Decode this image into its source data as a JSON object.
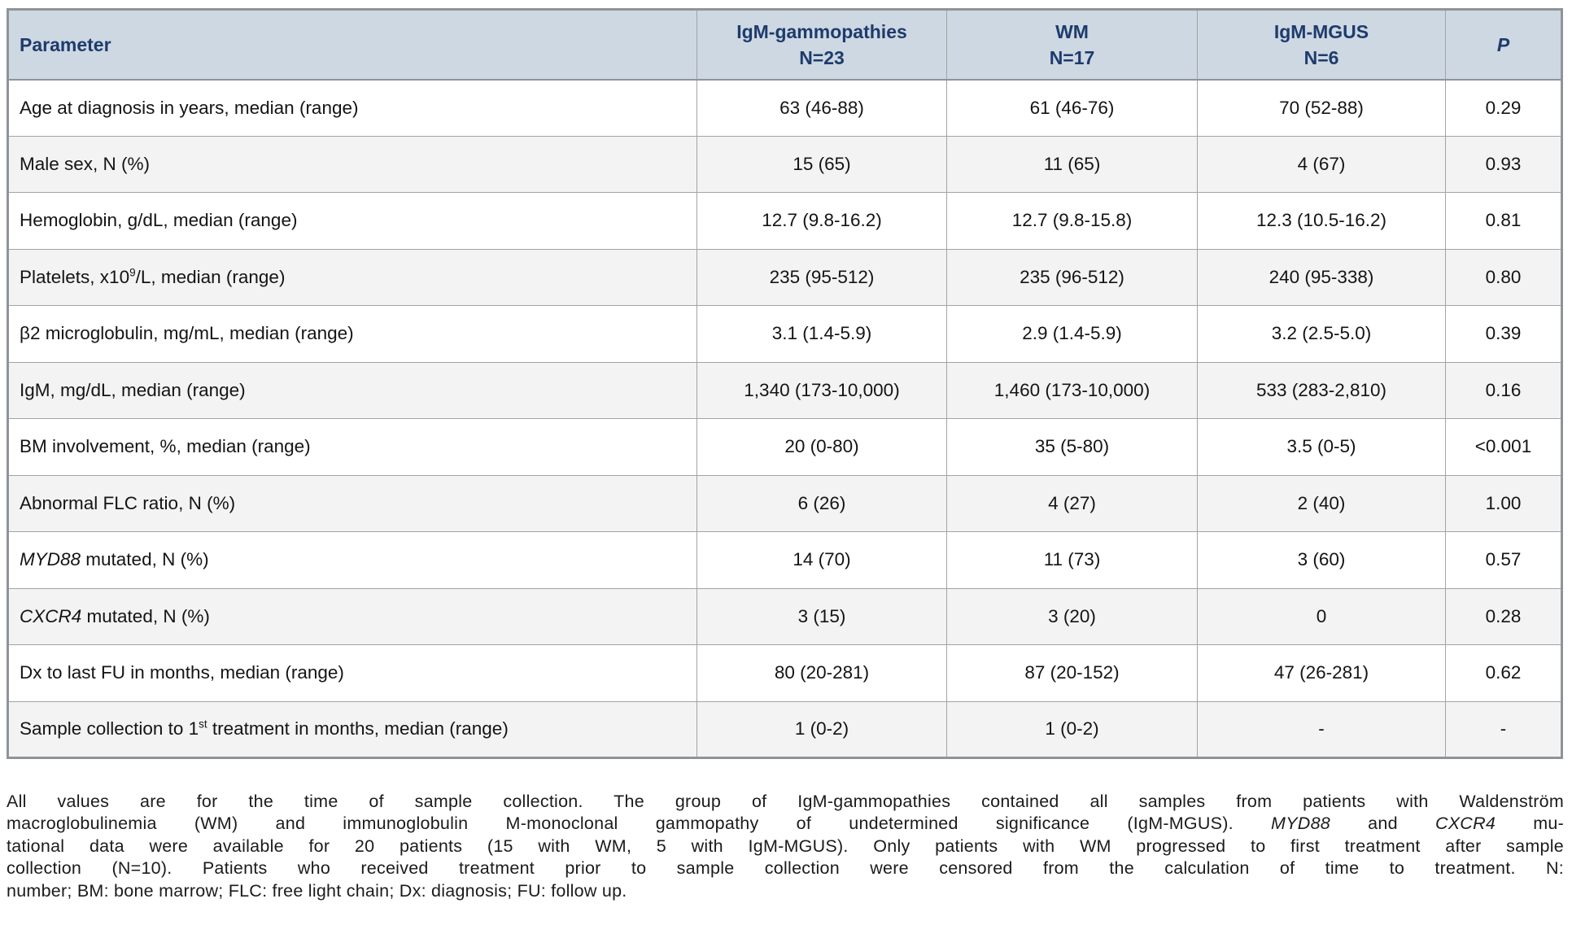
{
  "colors": {
    "header_bg": "#cdd8e2",
    "header_text": "#1e3b6c",
    "alt_row_bg": "#f3f3f3",
    "inner_border": "#a3a3a3",
    "outer_border": "#8f9499"
  },
  "table": {
    "columns": [
      {
        "id": "parameter",
        "line1": "Parameter"
      },
      {
        "id": "igm-gammopathies",
        "line1": "IgM-gammopathies",
        "line2": "N=23"
      },
      {
        "id": "wm",
        "line1": "WM",
        "line2": "N=17"
      },
      {
        "id": "igm-mgus",
        "line1": "IgM-MGUS",
        "line2": "N=6"
      },
      {
        "id": "p-value",
        "line1": "P",
        "italic": true
      }
    ],
    "rows": [
      {
        "param": [
          {
            "t": "Age at diagnosis in years, median (range)"
          }
        ],
        "values": [
          "63 (46-88)",
          "61 (46-76)",
          "70 (52-88)",
          "0.29"
        ]
      },
      {
        "param": [
          {
            "t": "Male sex, N (%)"
          }
        ],
        "values": [
          "15 (65)",
          "11 (65)",
          "4 (67)",
          "0.93"
        ]
      },
      {
        "param": [
          {
            "t": "Hemoglobin, g/dL, median (range)"
          }
        ],
        "values": [
          "12.7 (9.8-16.2)",
          "12.7 (9.8-15.8)",
          "12.3 (10.5-16.2)",
          "0.81"
        ]
      },
      {
        "param": [
          {
            "t": "Platelets, x10"
          },
          {
            "t": "9",
            "s": true
          },
          {
            "t": "/L, median (range)"
          }
        ],
        "values": [
          "235 (95-512)",
          "235 (96-512)",
          "240 (95-338)",
          "0.80"
        ]
      },
      {
        "param": [
          {
            "t": "β2 microglobulin, mg/mL, median (range)"
          }
        ],
        "values": [
          "3.1 (1.4-5.9)",
          "2.9 (1.4-5.9)",
          "3.2 (2.5-5.0)",
          "0.39"
        ]
      },
      {
        "param": [
          {
            "t": "IgM, mg/dL, median (range)"
          }
        ],
        "values": [
          "1,340 (173-10,000)",
          "1,460 (173-10,000)",
          "533 (283-2,810)",
          "0.16"
        ]
      },
      {
        "param": [
          {
            "t": "BM involvement, %, median (range)"
          }
        ],
        "values": [
          "20 (0-80)",
          "35 (5-80)",
          "3.5 (0-5)",
          "<0.001"
        ]
      },
      {
        "param": [
          {
            "t": "Abnormal FLC ratio, N (%)"
          }
        ],
        "values": [
          "6 (26)",
          "4 (27)",
          "2 (40)",
          "1.00"
        ]
      },
      {
        "param": [
          {
            "t": "MYD88",
            "i": true
          },
          {
            "t": " mutated, N (%)"
          }
        ],
        "values": [
          "14 (70)",
          "11 (73)",
          "3 (60)",
          "0.57"
        ]
      },
      {
        "param": [
          {
            "t": "CXCR4",
            "i": true
          },
          {
            "t": " mutated, N (%)"
          }
        ],
        "values": [
          "3 (15)",
          "3 (20)",
          "0",
          "0.28"
        ]
      },
      {
        "param": [
          {
            "t": "Dx to last FU in months, median (range)"
          }
        ],
        "values": [
          "80 (20-281)",
          "87 (20-152)",
          "47 (26-281)",
          "0.62"
        ]
      },
      {
        "param": [
          {
            "t": "Sample collection to 1"
          },
          {
            "t": "st",
            "s": true
          },
          {
            "t": " treatment in months, median (range)"
          }
        ],
        "values": [
          "1 (0-2)",
          "1 (0-2)",
          "-",
          "-"
        ]
      }
    ]
  },
  "footnote": {
    "lines": [
      [
        {
          "t": "All values are for the time of sample collection. The group of IgM-gammopathies contained all samples from patients with Waldenström"
        }
      ],
      [
        {
          "t": "macroglobulinemia (WM) and immunoglobulin M-monoclonal gammopathy of undetermined significance (IgM-MGUS). "
        },
        {
          "t": "MYD88",
          "i": true
        },
        {
          "t": " and "
        },
        {
          "t": "CXCR4",
          "i": true
        },
        {
          "t": " mu-"
        }
      ],
      [
        {
          "t": "tational data were available for 20 patients (15 with WM, 5 with IgM-MGUS). Only patients with WM progressed to first treatment after sample"
        }
      ],
      [
        {
          "t": "collection (N=10). Patients who received treatment prior to sample collection were censored from the calculation of time to treatment. N:"
        }
      ],
      [
        {
          "t": "number; BM: bone marrow; FLC: free light chain; Dx: diagnosis; FU: follow up."
        }
      ]
    ]
  }
}
